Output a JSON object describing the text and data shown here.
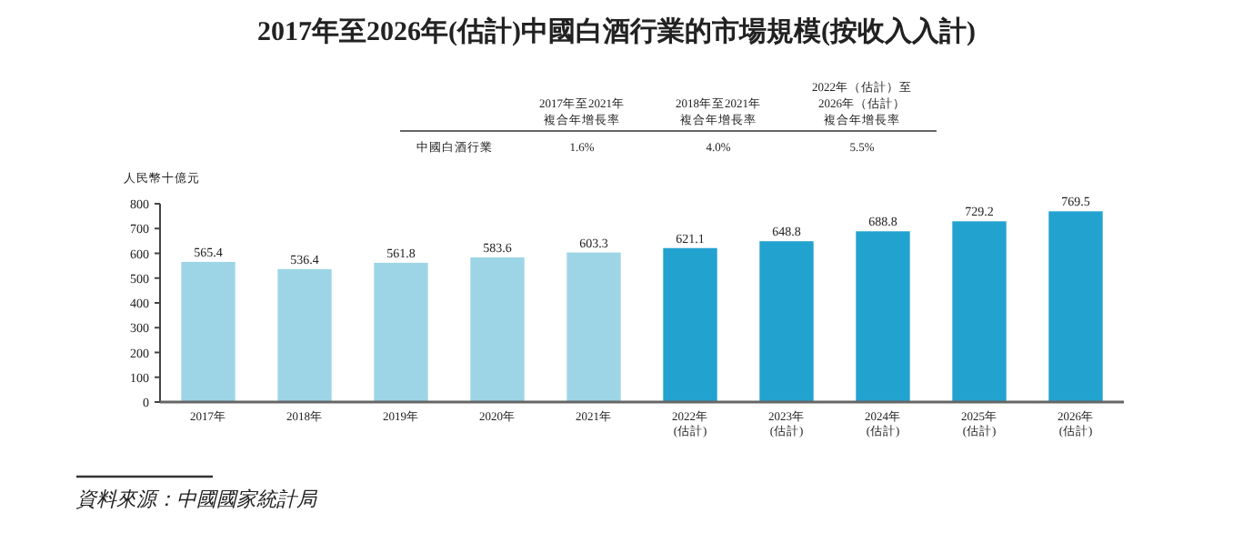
{
  "chart_data": {
    "type": "bar",
    "title": "2017年至2026年(估計)中國白酒行業的市場規模(按收入入計)",
    "ylabel": "人民幣十億元",
    "categories": [
      "2017年",
      "2018年",
      "2019年",
      "2020年",
      "2021年",
      "2022年\n(估計)",
      "2023年\n(估計)",
      "2024年\n(估計)",
      "2025年\n(估計)",
      "2026年\n(估計)"
    ],
    "values": [
      565.4,
      536.4,
      561.8,
      583.6,
      603.3,
      621.1,
      648.8,
      688.8,
      729.2,
      769.5
    ],
    "colors": [
      "#9dd5e6",
      "#9dd5e6",
      "#9dd5e6",
      "#9dd5e6",
      "#9dd5e6",
      "#22a2cf",
      "#22a2cf",
      "#22a2cf",
      "#22a2cf",
      "#22a2cf"
    ],
    "ylim": [
      0,
      800
    ],
    "yticks": [
      0,
      100,
      200,
      300,
      400,
      500,
      600,
      700,
      800
    ],
    "data_labels": true,
    "grid": false,
    "annotations": [
      "2017年至2021年",
      "複合年增長率",
      "2018年至2021年",
      "複合年增長率",
      "2022年（估計）至",
      "2026年（估計）",
      "複合年增長率",
      "中國白酒行業",
      "1.6%",
      "4.0%",
      "5.5%",
      "資料來源：中國國家統計局"
    ]
  }
}
